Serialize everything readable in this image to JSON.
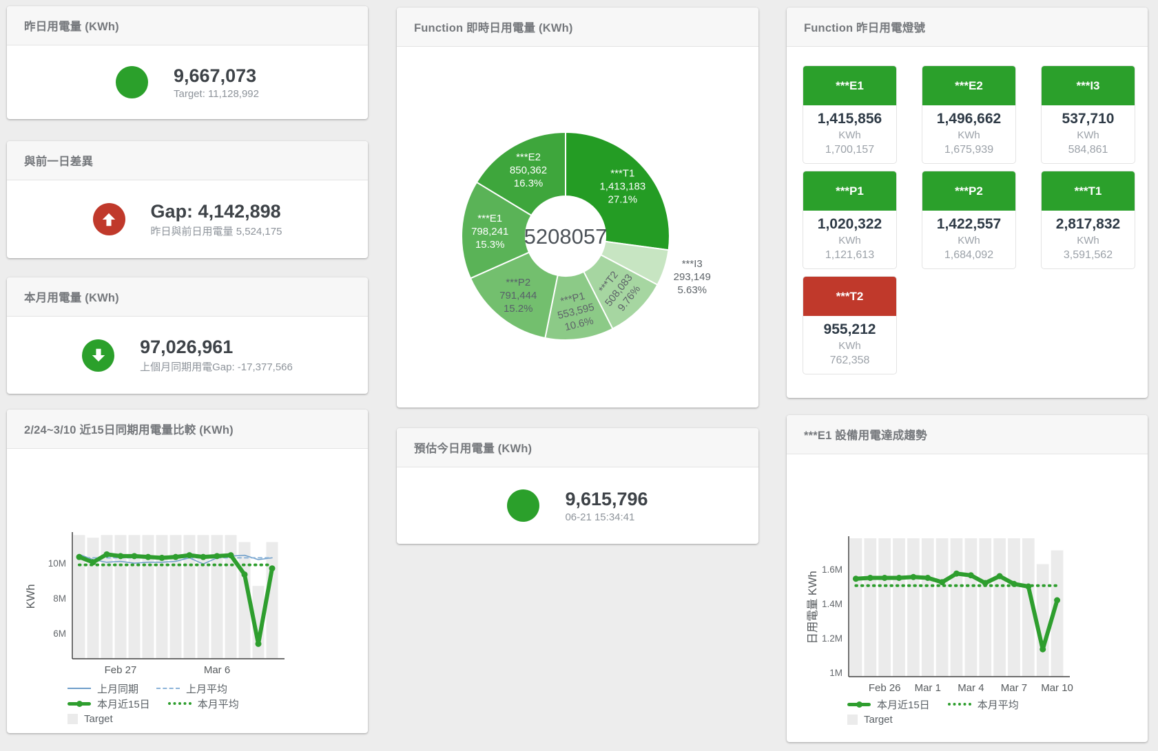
{
  "theme": {
    "green": "#2ba02b",
    "line_green": "#2e9e2e",
    "red": "#c0392b",
    "blue_line": "#6d9dc9",
    "blue_dash": "#8ab2d8",
    "target_bar_gray": "#ebebeb",
    "value_text": "#3e4348",
    "muted_text": "#8d939a",
    "title_text": "#75787c"
  },
  "cards": {
    "yesterday": {
      "title": "昨日用電量 (KWh)",
      "value": "9,667,073",
      "subtitle": "Target: 11,128,992",
      "indicator": "green-circle"
    },
    "day_gap": {
      "title": "與前一日差異",
      "value": "Gap: 4,142,898",
      "subtitle": "昨日與前日用電量 5,524,175",
      "indicator": "red-up-arrow"
    },
    "month": {
      "title": "本月用電量 (KWh)",
      "value": "97,026,961",
      "subtitle": "上個月同期用電Gap: -17,377,566",
      "indicator": "green-down-arrow"
    },
    "estimate": {
      "title": "預估今日用電量 (KWh)",
      "value": "9,615,796",
      "subtitle": "06-21 15:34:41",
      "indicator": "green-circle"
    },
    "lights": {
      "title": "Function 昨日用電燈號",
      "unit": "KWh"
    }
  },
  "lights_tiles": [
    {
      "label": "***E1",
      "value": "1,415,856",
      "unit": "KWh",
      "target": "1,700,157",
      "status": "green"
    },
    {
      "label": "***E2",
      "value": "1,496,662",
      "unit": "KWh",
      "target": "1,675,939",
      "status": "green"
    },
    {
      "label": "***I3",
      "value": "537,710",
      "unit": "KWh",
      "target": "584,861",
      "status": "green"
    },
    {
      "label": "***P1",
      "value": "1,020,322",
      "unit": "KWh",
      "target": "1,121,613",
      "status": "green"
    },
    {
      "label": "***P2",
      "value": "1,422,557",
      "unit": "KWh",
      "target": "1,684,092",
      "status": "green"
    },
    {
      "label": "***T1",
      "value": "2,817,832",
      "unit": "KWh",
      "target": "3,591,562",
      "status": "green"
    },
    {
      "label": "***T2",
      "value": "955,212",
      "unit": "KWh",
      "target": "762,358",
      "status": "red"
    }
  ],
  "chart_data": [
    {
      "type": "pie",
      "title": "Function 即時日用電量 (KWh)",
      "center_label": "5208057",
      "total": 5208057,
      "legend_position": "none",
      "slices": [
        {
          "name": "***T1",
          "value": 1413183,
          "value_label": "1,413,183",
          "pct_label": "27.1%",
          "color": "#249c24",
          "text": "#ffffff"
        },
        {
          "name": "***I3",
          "value": 293149,
          "value_label": "293,149",
          "pct_label": "5.63%",
          "color": "#c7e5c2",
          "text": "#5d6368",
          "outside": true
        },
        {
          "name": "***T2",
          "value": 508083,
          "value_label": "508,083",
          "pct_label": "9.76%",
          "color": "#a6d6a1",
          "text": "#5d6368",
          "rotate": -52
        },
        {
          "name": "***P1",
          "value": 553595,
          "value_label": "553,595",
          "pct_label": "10.6%",
          "color": "#8cca87",
          "text": "#5d6368",
          "rotate": -14
        },
        {
          "name": "***P2",
          "value": 791444,
          "value_label": "791,444",
          "pct_label": "15.2%",
          "color": "#73bf6e",
          "text": "#58606a"
        },
        {
          "name": "***E1",
          "value": 798241,
          "value_label": "798,241",
          "pct_label": "15.3%",
          "color": "#5ab357",
          "text": "#ffffff"
        },
        {
          "name": "***E2",
          "value": 850362,
          "value_label": "850,362",
          "pct_label": "16.3%",
          "color": "#3ea63c",
          "text": "#ffffff"
        }
      ]
    },
    {
      "type": "bar+line",
      "title": "2/24~3/10 近15日同期用電量比較 (KWh)",
      "ylabel": "KWh",
      "y_unit": "millions KWh",
      "ymin": 4.55,
      "ymax": 11.65,
      "grid": false,
      "yticks": [
        {
          "v": 6,
          "label": "6M"
        },
        {
          "v": 8,
          "label": "8M"
        },
        {
          "v": 10,
          "label": "10M"
        }
      ],
      "x_labels": [
        "2/24",
        "2/25",
        "2/26",
        "2/27",
        "2/28",
        "3/1",
        "3/2",
        "3/3",
        "3/4",
        "3/5",
        "3/6",
        "3/7",
        "3/8",
        "3/9",
        "3/10"
      ],
      "xticks": [
        {
          "i": 3,
          "label": "Feb 27"
        },
        {
          "i": 10,
          "label": "Mar 6"
        }
      ],
      "target": {
        "name": "Target",
        "color": "#ebebeb",
        "values": [
          11.6,
          11.45,
          11.6,
          11.6,
          11.6,
          11.6,
          11.6,
          11.6,
          11.6,
          11.6,
          11.6,
          11.6,
          11.2,
          8.7,
          11.2
        ]
      },
      "series": [
        {
          "name": "上月同期",
          "color": "#6d9dc9",
          "width": 1.5,
          "dash": "",
          "values": [
            10.5,
            10.2,
            10.05,
            10.1,
            10.0,
            10.05,
            10.05,
            10.1,
            10.3,
            9.95,
            10.3,
            10.4,
            10.45,
            10.2,
            10.3
          ]
        },
        {
          "name": "上月平均",
          "color": "#8ab2d8",
          "width": 2,
          "dash": "5 5",
          "values": [
            10.3,
            10.3,
            10.3,
            10.3,
            10.3,
            10.3,
            10.3,
            10.3,
            10.3,
            10.3,
            10.3,
            10.3,
            10.3,
            10.3,
            10.3
          ]
        },
        {
          "name": "本月近15日",
          "color": "#2e9e2e",
          "width": 6,
          "dash": "",
          "markers": true,
          "values": [
            10.35,
            10.05,
            10.5,
            10.4,
            10.4,
            10.35,
            10.3,
            10.35,
            10.45,
            10.35,
            10.4,
            10.45,
            9.35,
            5.4,
            9.7
          ]
        },
        {
          "name": "本月平均",
          "color": "#2e9e2e",
          "width": 4,
          "dash": "1.5 7",
          "values": [
            9.9,
            9.9,
            9.9,
            9.9,
            9.9,
            9.9,
            9.9,
            9.9,
            9.9,
            9.9,
            9.9,
            9.9,
            9.9,
            9.9,
            9.9
          ]
        }
      ],
      "legend_rows": [
        [
          {
            "label": "上月同期",
            "marker": "line-solid",
            "color": "#6d9dc9"
          },
          {
            "label": "上月平均",
            "marker": "line-dashed",
            "color": "#8ab2d8"
          }
        ],
        [
          {
            "label": "本月近15日",
            "marker": "line-thick",
            "color": "#2e9e2e"
          },
          {
            "label": "本月平均",
            "marker": "line-dotted",
            "color": "#2e9e2e"
          }
        ],
        [
          {
            "label": "Target",
            "marker": "square",
            "color": "#ebebeb"
          }
        ]
      ]
    },
    {
      "type": "bar+line",
      "title": "***E1 設備用電達成趨勢",
      "ylabel": "日用電量 KWh",
      "y_unit": "millions KWh",
      "ymin": 0.976,
      "ymax": 1.78,
      "grid": false,
      "yticks": [
        {
          "v": 1,
          "label": "1M"
        },
        {
          "v": 1.2,
          "label": "1.2M"
        },
        {
          "v": 1.4,
          "label": "1.4M"
        },
        {
          "v": 1.6,
          "label": "1.6M"
        }
      ],
      "x_labels": [
        "2/24",
        "2/25",
        "2/26",
        "2/27",
        "2/28",
        "3/1",
        "3/2",
        "3/3",
        "3/4",
        "3/5",
        "3/6",
        "3/7",
        "3/8",
        "3/9",
        "3/10"
      ],
      "xticks": [
        {
          "i": 2,
          "label": "Feb 26"
        },
        {
          "i": 5,
          "label": "Mar 1"
        },
        {
          "i": 8,
          "label": "Mar 4"
        },
        {
          "i": 11,
          "label": "Mar 7"
        },
        {
          "i": 14,
          "label": "Mar 10"
        }
      ],
      "target": {
        "name": "Target",
        "color": "#ebebeb",
        "values": [
          1.78,
          1.78,
          1.78,
          1.78,
          1.78,
          1.78,
          1.78,
          1.78,
          1.78,
          1.78,
          1.78,
          1.78,
          1.78,
          1.63,
          1.71
        ]
      },
      "series": [
        {
          "name": "本月近15日",
          "color": "#2e9e2e",
          "width": 6,
          "dash": "",
          "markers": true,
          "values": [
            1.545,
            1.55,
            1.55,
            1.55,
            1.555,
            1.55,
            1.525,
            1.575,
            1.565,
            1.52,
            1.56,
            1.515,
            1.5,
            1.135,
            1.42
          ]
        },
        {
          "name": "本月平均",
          "color": "#2e9e2e",
          "width": 4,
          "dash": "1.5 7",
          "values": [
            1.505,
            1.505,
            1.505,
            1.505,
            1.505,
            1.505,
            1.505,
            1.505,
            1.505,
            1.505,
            1.505,
            1.505,
            1.505,
            1.505,
            1.505
          ]
        }
      ],
      "legend_rows": [
        [
          {
            "label": "本月近15日",
            "marker": "line-thick",
            "color": "#2e9e2e"
          },
          {
            "label": "本月平均",
            "marker": "line-dotted",
            "color": "#2e9e2e"
          }
        ],
        [
          {
            "label": "Target",
            "marker": "square",
            "color": "#ebebeb"
          }
        ]
      ]
    }
  ]
}
